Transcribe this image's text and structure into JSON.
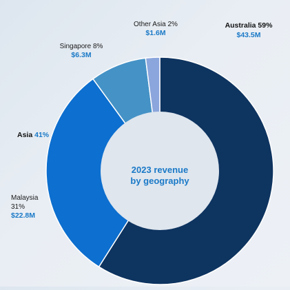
{
  "chart_data": {
    "type": "pie",
    "donut": true,
    "center_title": [
      "2023 revenue",
      "by geography"
    ],
    "slices": [
      {
        "label": "Australia",
        "percent": 59,
        "value": 43.5,
        "value_label": "$43.5M",
        "color": "#0e3460"
      },
      {
        "label": "Malaysia",
        "percent": 31,
        "value": 22.8,
        "value_label": "$22.8M",
        "color": "#0d6fcf"
      },
      {
        "label": "Singapore",
        "percent": 8,
        "value": 6.3,
        "value_label": "$6.3M",
        "color": "#4592c6"
      },
      {
        "label": "Other Asia",
        "percent": 2,
        "value": 1.6,
        "value_label": "$1.6M",
        "color": "#8ba6dc"
      }
    ],
    "group_labels": [
      {
        "label": "Asia",
        "percent_label": "41%"
      }
    ],
    "colors": {
      "accent_text": "#1a79c7",
      "hole": "#dfe6ee",
      "separator": "#ffffff"
    }
  }
}
